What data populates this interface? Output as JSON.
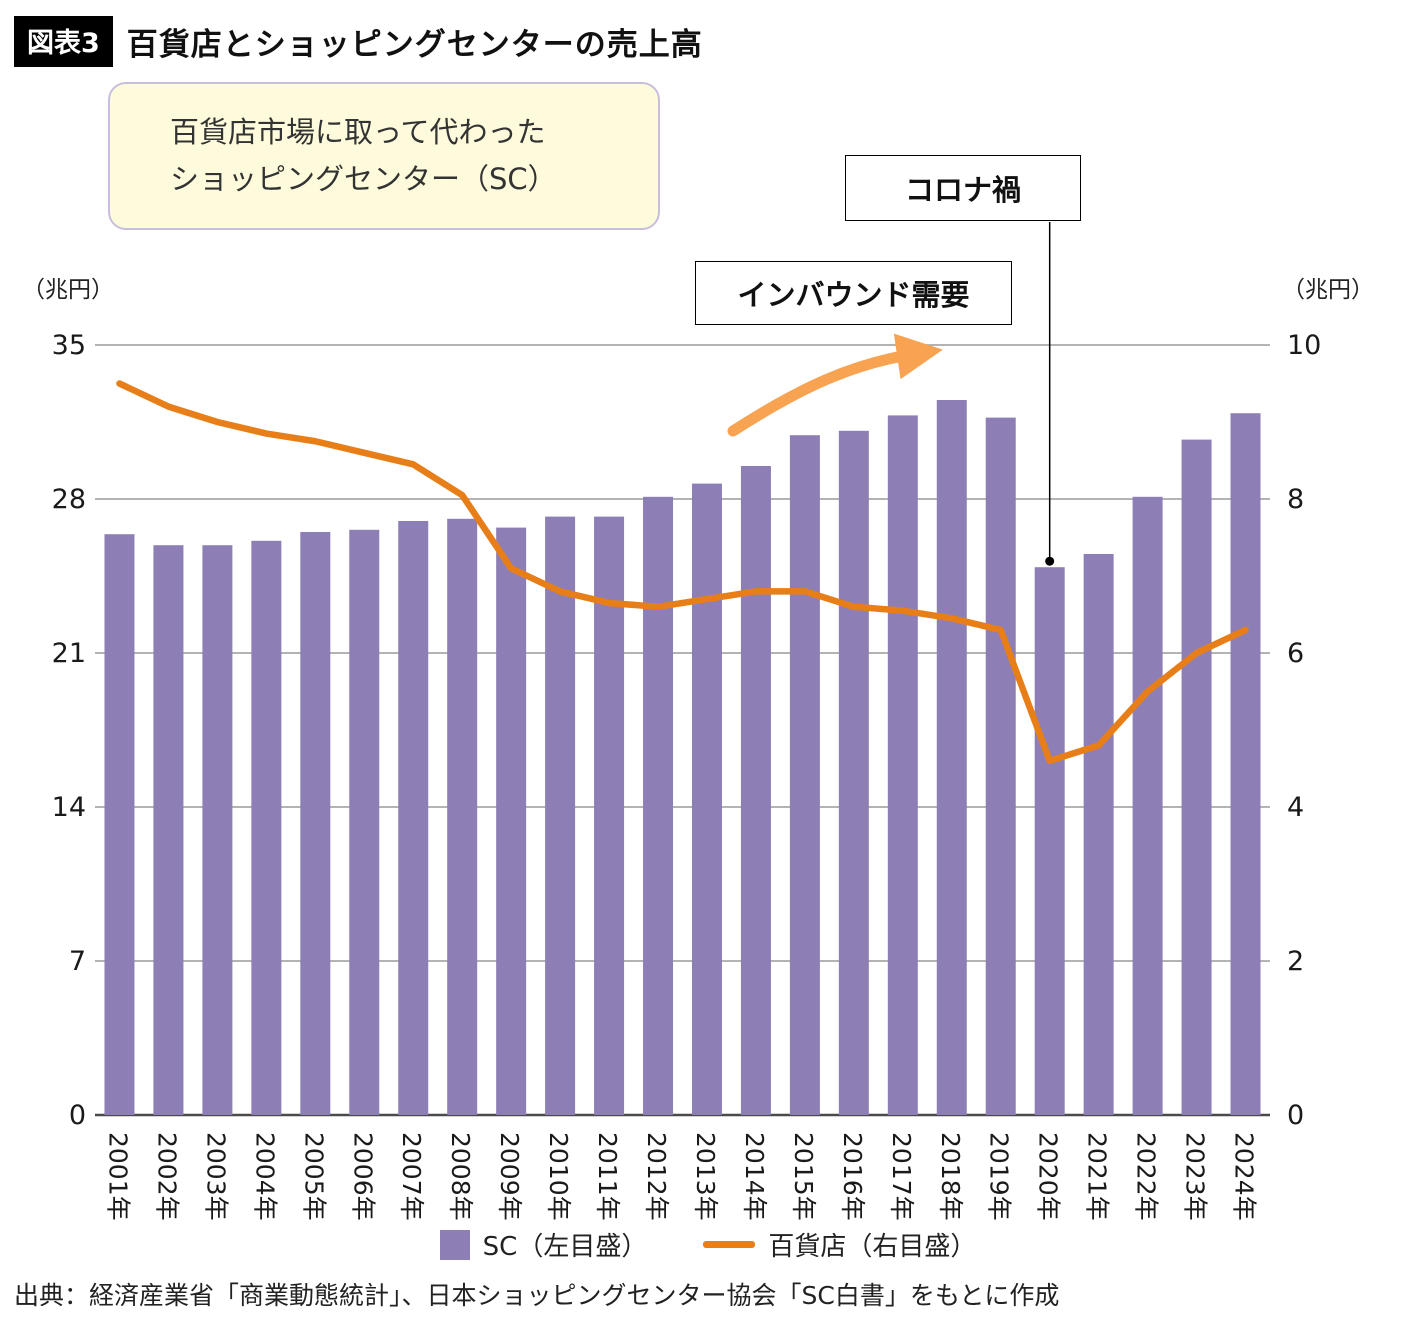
{
  "header": {
    "figure_label": "図表3",
    "title": "百貨店とショッピングセンターの売上高"
  },
  "callout": {
    "line1": "百貨店市場に取って代わった",
    "line2": "ショッピングセンター（SC）"
  },
  "annotations": {
    "covid": "コロナ禍",
    "inbound": "インバウンド需要"
  },
  "axes": {
    "left_unit": "（兆円）",
    "right_unit": "（兆円）"
  },
  "legend": {
    "sc_label": "SC（左目盛）",
    "dept_label": "百貨店（右目盛）"
  },
  "source": "出典：経済産業省「商業動態統計」、日本ショッピングセンター協会「SC白書」をもとに作成",
  "colors": {
    "bar": "#8d7fb5",
    "line": "#e87e17",
    "arrow": "#f7a351",
    "grid": "#9a9a9a",
    "baseline": "#4a4a4a"
  },
  "chart_data": {
    "type": "bar",
    "title": "百貨店とショッピングセンターの売上高",
    "categories": [
      "2001年",
      "2002年",
      "2003年",
      "2004年",
      "2005年",
      "2006年",
      "2007年",
      "2008年",
      "2009年",
      "2010年",
      "2011年",
      "2012年",
      "2013年",
      "2014年",
      "2015年",
      "2016年",
      "2017年",
      "2018年",
      "2019年",
      "2020年",
      "2021年",
      "2022年",
      "2023年",
      "2024年"
    ],
    "series": [
      {
        "name": "SC（左目盛）",
        "type": "bar",
        "axis": "left",
        "color": "#8d7fb5",
        "values": [
          26.4,
          25.9,
          25.9,
          26.1,
          26.5,
          26.6,
          27.0,
          27.1,
          26.7,
          27.2,
          27.2,
          28.1,
          28.7,
          29.5,
          30.9,
          31.1,
          31.8,
          32.5,
          31.7,
          24.9,
          25.5,
          28.1,
          30.7,
          31.9
        ]
      },
      {
        "name": "百貨店（右目盛）",
        "type": "line",
        "axis": "right",
        "color": "#e87e17",
        "values": [
          9.5,
          9.2,
          9.0,
          8.85,
          8.75,
          8.6,
          8.45,
          8.05,
          7.1,
          6.8,
          6.65,
          6.6,
          6.7,
          6.8,
          6.8,
          6.6,
          6.55,
          6.45,
          6.3,
          4.6,
          4.8,
          5.5,
          6.0,
          6.3
        ]
      }
    ],
    "left_ylabel": "（兆円）",
    "right_ylabel": "（兆円）",
    "left_ticks": [
      0,
      7,
      14,
      21,
      28,
      35
    ],
    "right_ticks": [
      0,
      2,
      4,
      6,
      8,
      10
    ],
    "left_ylim": [
      0,
      35
    ],
    "right_ylim": [
      0,
      10
    ],
    "grid": true,
    "legend_position": "bottom",
    "annotations": [
      {
        "text": "コロナ禍",
        "target_category": "2020年"
      },
      {
        "text": "インバウンド需要",
        "target": "2013-2018 line rise"
      }
    ]
  }
}
